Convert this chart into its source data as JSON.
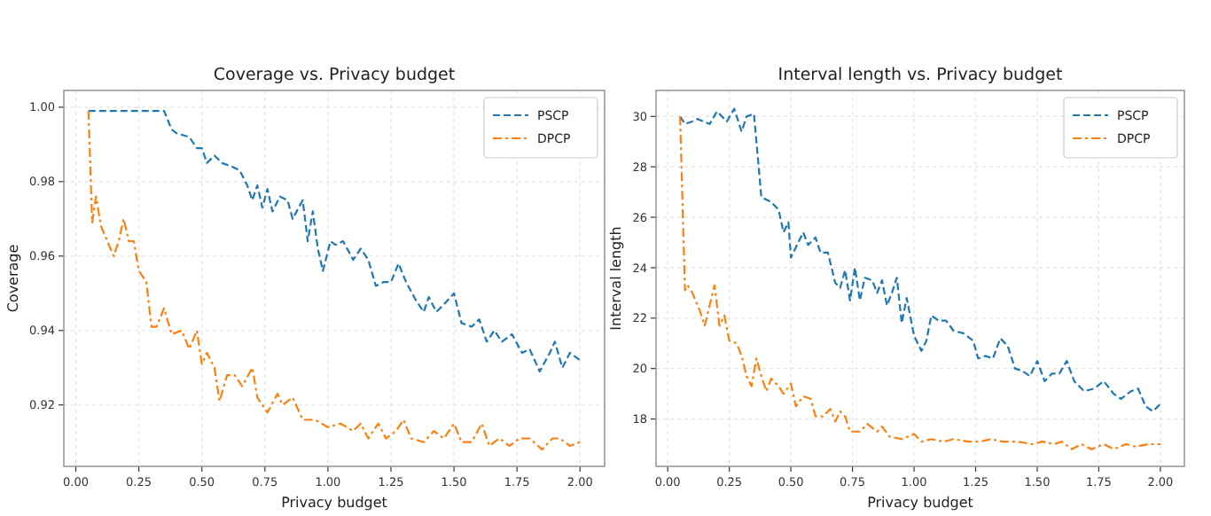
{
  "chart_data": [
    {
      "type": "line",
      "title": "Coverage vs. Privacy budget",
      "xlabel": "Privacy budget",
      "ylabel": "Coverage",
      "xlim": [
        -0.0475,
        2.0975
      ],
      "ylim": [
        0.9035,
        1.0045
      ],
      "xticks": [
        {
          "value": 0,
          "label": "0.00"
        },
        0.25,
        {
          "value": 0.5,
          "label": "0.50"
        },
        0.75,
        {
          "value": 1,
          "label": "1.00"
        },
        1.25,
        {
          "value": 1.5,
          "label": "1.50"
        },
        1.75,
        {
          "value": 2,
          "label": "2.00"
        }
      ],
      "yticks": [
        0.92,
        0.94,
        0.96,
        0.98,
        {
          "value": 1,
          "label": "1.00"
        }
      ],
      "grid": true,
      "legend": "top right",
      "series": [
        {
          "name": "PSCP",
          "color": "#1f77b4",
          "line_style": "dashed",
          "x": [
            0.05,
            0.1,
            0.2,
            0.3,
            0.35,
            0.38,
            0.4,
            0.45,
            0.48,
            0.5,
            0.52,
            0.55,
            0.58,
            0.62,
            0.65,
            0.68,
            0.7,
            0.72,
            0.74,
            0.76,
            0.78,
            0.81,
            0.84,
            0.86,
            0.9,
            0.92,
            0.94,
            0.96,
            0.98,
            1.01,
            1.03,
            1.06,
            1.1,
            1.13,
            1.16,
            1.19,
            1.22,
            1.25,
            1.28,
            1.31,
            1.35,
            1.38,
            1.4,
            1.43,
            1.46,
            1.5,
            1.53,
            1.57,
            1.6,
            1.63,
            1.66,
            1.69,
            1.73,
            1.77,
            1.8,
            1.84,
            1.88,
            1.9,
            1.93,
            1.96,
            2.0
          ],
          "values": [
            0.999,
            0.999,
            0.999,
            0.999,
            0.999,
            0.994,
            0.993,
            0.992,
            0.989,
            0.989,
            0.985,
            0.987,
            0.985,
            0.984,
            0.983,
            0.979,
            0.975,
            0.979,
            0.973,
            0.978,
            0.972,
            0.976,
            0.975,
            0.97,
            0.975,
            0.964,
            0.972,
            0.962,
            0.956,
            0.964,
            0.963,
            0.964,
            0.959,
            0.962,
            0.959,
            0.952,
            0.953,
            0.953,
            0.958,
            0.953,
            0.948,
            0.945,
            0.949,
            0.945,
            0.947,
            0.95,
            0.942,
            0.941,
            0.943,
            0.937,
            0.94,
            0.937,
            0.939,
            0.934,
            0.935,
            0.929,
            0.934,
            0.937,
            0.93,
            0.934,
            0.932
          ]
        },
        {
          "name": "DPCP",
          "color": "#ff7f0e",
          "line_style": "dashdot",
          "x": [
            0.05,
            0.065,
            0.08,
            0.1,
            0.15,
            0.17,
            0.19,
            0.21,
            0.23,
            0.25,
            0.28,
            0.3,
            0.32,
            0.35,
            0.38,
            0.42,
            0.45,
            0.48,
            0.5,
            0.52,
            0.55,
            0.57,
            0.6,
            0.63,
            0.66,
            0.7,
            0.72,
            0.76,
            0.8,
            0.82,
            0.86,
            0.9,
            0.95,
            1.0,
            1.05,
            1.1,
            1.13,
            1.16,
            1.2,
            1.23,
            1.27,
            1.3,
            1.33,
            1.38,
            1.42,
            1.46,
            1.5,
            1.53,
            1.57,
            1.61,
            1.64,
            1.68,
            1.72,
            1.76,
            1.8,
            1.85,
            1.89,
            1.92,
            1.96,
            2.0
          ],
          "values": [
            0.999,
            0.969,
            0.976,
            0.968,
            0.96,
            0.964,
            0.97,
            0.964,
            0.964,
            0.956,
            0.953,
            0.941,
            0.941,
            0.946,
            0.939,
            0.94,
            0.935,
            0.94,
            0.931,
            0.934,
            0.93,
            0.921,
            0.928,
            0.928,
            0.925,
            0.93,
            0.922,
            0.918,
            0.923,
            0.92,
            0.922,
            0.916,
            0.916,
            0.914,
            0.915,
            0.913,
            0.915,
            0.911,
            0.915,
            0.911,
            0.913,
            0.916,
            0.911,
            0.91,
            0.913,
            0.911,
            0.915,
            0.91,
            0.91,
            0.915,
            0.909,
            0.911,
            0.909,
            0.911,
            0.911,
            0.908,
            0.911,
            0.911,
            0.909,
            0.91
          ]
        }
      ]
    },
    {
      "type": "line",
      "title": "Interval length vs. Privacy budget",
      "xlabel": "Privacy budget",
      "ylabel": "Interval length",
      "xlim": [
        -0.0475,
        2.0975
      ],
      "ylim": [
        16.12,
        31.03
      ],
      "xticks": [
        {
          "value": 0,
          "label": "0.00"
        },
        0.25,
        {
          "value": 0.5,
          "label": "0.50"
        },
        0.75,
        {
          "value": 1,
          "label": "1.00"
        },
        1.25,
        {
          "value": 1.5,
          "label": "1.50"
        },
        1.75,
        {
          "value": 2,
          "label": "2.00"
        }
      ],
      "yticks": [
        18,
        20,
        22,
        24,
        26,
        28,
        30
      ],
      "grid": true,
      "legend": "top right",
      "series": [
        {
          "name": "PSCP",
          "color": "#1f77b4",
          "line_style": "dashed",
          "x": [
            0.05,
            0.07,
            0.1,
            0.12,
            0.17,
            0.2,
            0.24,
            0.27,
            0.3,
            0.32,
            0.35,
            0.38,
            0.42,
            0.45,
            0.47,
            0.49,
            0.5,
            0.55,
            0.57,
            0.6,
            0.62,
            0.65,
            0.68,
            0.7,
            0.72,
            0.74,
            0.76,
            0.78,
            0.8,
            0.83,
            0.85,
            0.87,
            0.89,
            0.91,
            0.93,
            0.95,
            0.97,
            1.0,
            1.03,
            1.05,
            1.07,
            1.1,
            1.13,
            1.16,
            1.2,
            1.24,
            1.26,
            1.29,
            1.32,
            1.35,
            1.38,
            1.41,
            1.44,
            1.47,
            1.5,
            1.53,
            1.56,
            1.59,
            1.62,
            1.65,
            1.69,
            1.73,
            1.77,
            1.81,
            1.84,
            1.88,
            1.91,
            1.94,
            1.97,
            2.0
          ],
          "values": [
            30.0,
            29.7,
            29.8,
            29.9,
            29.7,
            30.2,
            29.8,
            30.3,
            29.4,
            30.0,
            30.1,
            26.8,
            26.6,
            26.3,
            25.4,
            25.8,
            24.4,
            25.4,
            24.9,
            25.2,
            24.6,
            24.6,
            23.4,
            23.2,
            23.9,
            22.7,
            24.0,
            22.7,
            23.6,
            23.5,
            23.0,
            23.5,
            22.5,
            23.0,
            23.6,
            21.8,
            22.8,
            21.3,
            20.7,
            21.1,
            22.1,
            21.9,
            21.9,
            21.5,
            21.4,
            21.1,
            20.4,
            20.5,
            20.4,
            21.2,
            20.9,
            20.0,
            19.9,
            19.7,
            20.3,
            19.5,
            19.8,
            19.8,
            20.3,
            19.5,
            19.1,
            19.2,
            19.5,
            19.0,
            18.8,
            19.1,
            19.2,
            18.5,
            18.3,
            18.6
          ]
        },
        {
          "name": "DPCP",
          "color": "#ff7f0e",
          "line_style": "dashdot",
          "x": [
            0.05,
            0.07,
            0.08,
            0.1,
            0.13,
            0.15,
            0.17,
            0.19,
            0.21,
            0.23,
            0.25,
            0.28,
            0.3,
            0.32,
            0.34,
            0.36,
            0.38,
            0.4,
            0.42,
            0.45,
            0.47,
            0.5,
            0.52,
            0.55,
            0.58,
            0.6,
            0.63,
            0.66,
            0.68,
            0.7,
            0.72,
            0.74,
            0.78,
            0.81,
            0.85,
            0.87,
            0.9,
            0.95,
            1.0,
            1.03,
            1.07,
            1.12,
            1.16,
            1.22,
            1.27,
            1.31,
            1.36,
            1.42,
            1.48,
            1.52,
            1.57,
            1.6,
            1.64,
            1.68,
            1.72,
            1.77,
            1.81,
            1.86,
            1.9,
            1.95,
            2.0
          ],
          "values": [
            30.0,
            23.1,
            23.3,
            23.0,
            22.3,
            21.7,
            22.5,
            23.3,
            21.7,
            22.1,
            21.1,
            21.0,
            20.5,
            19.7,
            19.3,
            20.4,
            19.7,
            19.1,
            19.6,
            19.3,
            19.0,
            19.4,
            18.5,
            18.9,
            18.8,
            18.1,
            18.1,
            18.4,
            17.9,
            18.3,
            18.1,
            17.5,
            17.5,
            17.8,
            17.5,
            17.7,
            17.3,
            17.2,
            17.4,
            17.1,
            17.2,
            17.1,
            17.2,
            17.1,
            17.1,
            17.2,
            17.1,
            17.1,
            17.0,
            17.1,
            17.0,
            17.1,
            16.8,
            17.0,
            16.8,
            17.0,
            16.8,
            17.0,
            16.9,
            17.0,
            17.0
          ]
        }
      ]
    }
  ]
}
